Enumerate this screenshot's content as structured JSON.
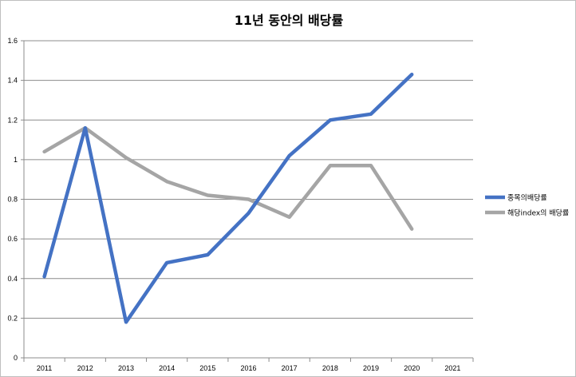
{
  "chart_data": {
    "type": "line",
    "title": "11년 동안의 배당률",
    "xlabel": "",
    "ylabel": "",
    "categories": [
      "2011",
      "2012",
      "2013",
      "2014",
      "2015",
      "2016",
      "2017",
      "2018",
      "2019",
      "2020",
      "2021"
    ],
    "ylim": [
      0,
      1.6
    ],
    "yticks": [
      "0",
      "0.2",
      "0.4",
      "0.6",
      "0.8",
      "1",
      "1.2",
      "1.4",
      "1.6"
    ],
    "grid": true,
    "legend_position": "right",
    "series": [
      {
        "name": "종목의배당률",
        "color": "#4472c4",
        "values": [
          0.41,
          1.16,
          0.18,
          0.48,
          0.52,
          0.73,
          1.02,
          1.2,
          1.23,
          1.43,
          null
        ]
      },
      {
        "name": "해당index의 배당률",
        "color": "#a5a5a5",
        "values": [
          1.04,
          1.16,
          1.01,
          0.89,
          0.82,
          0.8,
          0.71,
          0.97,
          0.97,
          0.65,
          null
        ]
      }
    ]
  }
}
